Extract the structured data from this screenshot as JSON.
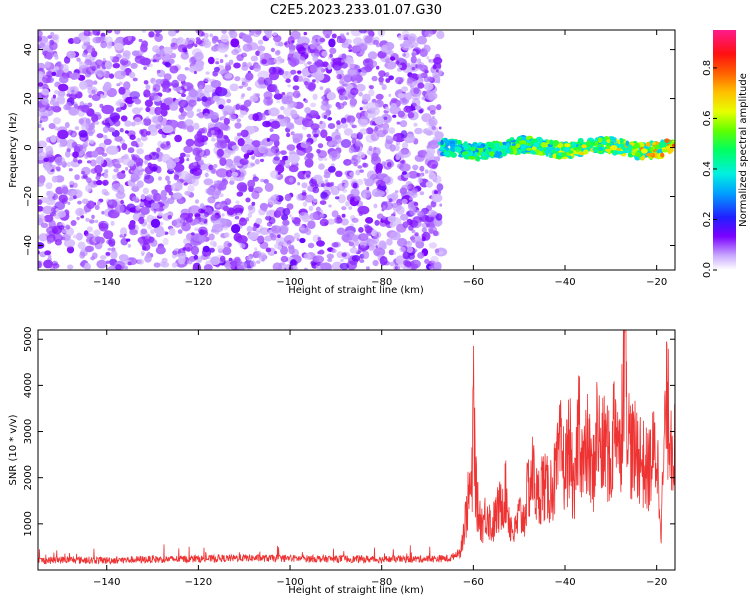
{
  "title": "C2E5.2023.233.01.07.G30",
  "chart_data": [
    {
      "type": "heatmap",
      "title": "C2E5.2023.233.01.07.G30",
      "xlabel": "Height of straight line (km)",
      "ylabel": "Frequency (Hz)",
      "xlim": [
        -155,
        -16
      ],
      "ylim": [
        -50,
        48
      ],
      "xticks": [
        -140,
        -120,
        -100,
        -80,
        -60,
        -40,
        -20
      ],
      "yticks": [
        -40,
        -20,
        0,
        20,
        40
      ],
      "colorbar": {
        "label": "Normalized spectral amplitude",
        "range": [
          0.0,
          0.95
        ],
        "ticks": [
          "0.0",
          "0.2",
          "0.4",
          "0.6",
          "0.8"
        ],
        "colormap": "gist_ncar-like (white, violet, blue, cyan, green, yellow, orange, red, magenta)"
      },
      "regions": [
        {
          "x_range": [
            -155,
            -67
          ],
          "freq_range": [
            -50,
            48
          ],
          "amplitude": [
            0.0,
            0.15
          ],
          "description": "scattered low-amplitude noise"
        },
        {
          "x_range": [
            -67,
            -16
          ],
          "freq_center": 0,
          "freq_halfwidth": 3,
          "amplitude": [
            0.2,
            0.85
          ],
          "description": "narrow band near 0 Hz"
        }
      ],
      "grid": false
    },
    {
      "type": "line",
      "xlabel": "Height of straight line (km)",
      "ylabel": "SNR (10 * v/v)",
      "xlim": [
        -155,
        -16
      ],
      "ylim": [
        0,
        5200
      ],
      "xticks": [
        -140,
        -120,
        -100,
        -80,
        -60,
        -40,
        -20
      ],
      "yticks": [
        1000,
        2000,
        3000,
        4000,
        5000
      ],
      "line_color": "#ee3333",
      "grid": false,
      "series": [
        {
          "x": [
            -155,
            -150,
            -140,
            -130,
            -120,
            -110,
            -100,
            -90,
            -80,
            -70,
            -65,
            -63,
            -62,
            -61,
            -60.2,
            -60,
            -59.5,
            -59,
            -58,
            -57,
            -56,
            -55,
            -54,
            -53,
            -52,
            -51,
            -50,
            -49,
            -48,
            -47,
            -46,
            -45,
            -44,
            -43,
            -42,
            -41,
            -40,
            -39,
            -38,
            -37,
            -36,
            -35,
            -34,
            -33,
            -32,
            -31,
            -30,
            -29,
            -28,
            -27,
            -26,
            -25,
            -24,
            -23,
            -22,
            -21,
            -20,
            -19,
            -18,
            -17,
            -16
          ],
          "y": [
            200,
            220,
            210,
            230,
            240,
            260,
            250,
            240,
            230,
            240,
            250,
            400,
            900,
            1600,
            1900,
            4000,
            1800,
            1300,
            1000,
            1300,
            900,
            1200,
            1400,
            1700,
            1000,
            800,
            1200,
            1100,
            1800,
            2100,
            1500,
            1900,
            1700,
            1800,
            2000,
            2600,
            2100,
            2800,
            1400,
            3400,
            2200,
            2700,
            1900,
            3100,
            2500,
            2800,
            2100,
            3700,
            2400,
            5150,
            2800,
            2500,
            2600,
            2300,
            2100,
            2400,
            2600,
            1000,
            3500,
            3200,
            2500
          ]
        }
      ]
    }
  ]
}
